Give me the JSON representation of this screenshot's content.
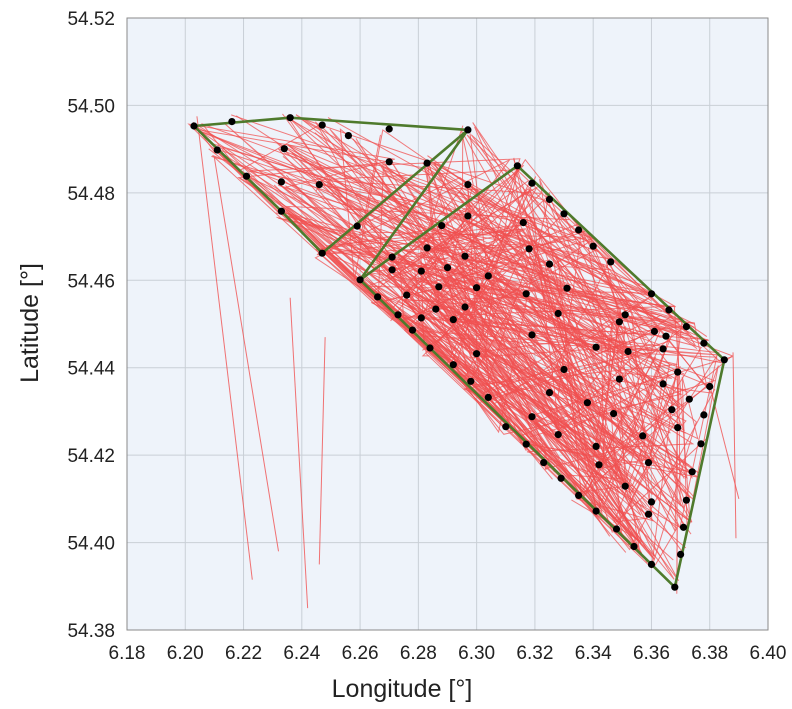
{
  "chart_data": {
    "type": "scatter",
    "title": "",
    "xlabel": "Longitude [°]",
    "ylabel": "Latitude [°]",
    "xlim": [
      6.18,
      6.4
    ],
    "ylim": [
      54.38,
      54.52
    ],
    "x_ticks": [
      "6.18",
      "6.20",
      "6.22",
      "6.24",
      "6.26",
      "6.28",
      "6.30",
      "6.32",
      "6.34",
      "6.36",
      "6.38",
      "6.40"
    ],
    "y_ticks": [
      "54.38",
      "54.40",
      "54.42",
      "54.44",
      "54.46",
      "54.48",
      "54.50",
      "54.52"
    ],
    "grid": true,
    "legend": "none",
    "colors": {
      "plot_background": "#eef3fa",
      "grid": "#c9cfd6",
      "tracks": "#f05050",
      "boundary": "#4e7a2c",
      "points": "#000000"
    },
    "boundary_lines": [
      {
        "x": [
          6.203,
          6.236,
          6.297,
          6.247,
          6.233,
          6.203
        ],
        "y": [
          54.4953,
          54.4972,
          54.4944,
          54.4662,
          54.4758,
          54.4953
        ]
      },
      {
        "x": [
          6.297,
          6.26,
          6.314,
          6.385,
          6.368,
          6.26
        ],
        "y": [
          54.4944,
          54.4601,
          54.4862,
          54.4418,
          54.3898,
          54.4601
        ]
      }
    ],
    "points": [
      [
        6.203,
        54.4953
      ],
      [
        6.216,
        54.4963
      ],
      [
        6.236,
        54.4972
      ],
      [
        6.247,
        54.4955
      ],
      [
        6.256,
        54.4931
      ],
      [
        6.27,
        54.4946
      ],
      [
        6.297,
        54.4944
      ],
      [
        6.211,
        54.4898
      ],
      [
        6.234,
        54.4901
      ],
      [
        6.221,
        54.4838
      ],
      [
        6.233,
        54.4825
      ],
      [
        6.246,
        54.4819
      ],
      [
        6.233,
        54.4758
      ],
      [
        6.247,
        54.4662
      ],
      [
        6.27,
        54.4871
      ],
      [
        6.283,
        54.4868
      ],
      [
        6.259,
        54.4724
      ],
      [
        6.271,
        54.4653
      ],
      [
        6.297,
        54.4819
      ],
      [
        6.314,
        54.4862
      ],
      [
        6.319,
        54.4822
      ],
      [
        6.325,
        54.4785
      ],
      [
        6.33,
        54.4752
      ],
      [
        6.335,
        54.4715
      ],
      [
        6.34,
        54.4678
      ],
      [
        6.346,
        54.4642
      ],
      [
        6.36,
        54.4569
      ],
      [
        6.366,
        54.4532
      ],
      [
        6.372,
        54.4494
      ],
      [
        6.378,
        54.4456
      ],
      [
        6.385,
        54.4418
      ],
      [
        6.38,
        54.4357
      ],
      [
        6.378,
        54.4292
      ],
      [
        6.377,
        54.4226
      ],
      [
        6.374,
        54.4162
      ],
      [
        6.372,
        54.4097
      ],
      [
        6.371,
        54.4035
      ],
      [
        6.37,
        54.3973
      ],
      [
        6.368,
        54.3898
      ],
      [
        6.36,
        54.395
      ],
      [
        6.354,
        54.3991
      ],
      [
        6.348,
        54.4031
      ],
      [
        6.341,
        54.4072
      ],
      [
        6.335,
        54.4108
      ],
      [
        6.329,
        54.4147
      ],
      [
        6.323,
        54.4183
      ],
      [
        6.317,
        54.4225
      ],
      [
        6.31,
        54.4265
      ],
      [
        6.304,
        54.4332
      ],
      [
        6.298,
        54.4369
      ],
      [
        6.292,
        54.4407
      ],
      [
        6.284,
        54.4445
      ],
      [
        6.278,
        54.4486
      ],
      [
        6.273,
        54.4521
      ],
      [
        6.266,
        54.4562
      ],
      [
        6.26,
        54.4601
      ],
      [
        6.283,
        54.4674
      ],
      [
        6.288,
        54.4725
      ],
      [
        6.29,
        54.4629
      ],
      [
        6.297,
        54.4747
      ],
      [
        6.296,
        54.4655
      ],
      [
        6.296,
        54.4539
      ],
      [
        6.3,
        54.4432
      ],
      [
        6.316,
        54.4732
      ],
      [
        6.318,
        54.4672
      ],
      [
        6.325,
        54.4637
      ],
      [
        6.317,
        54.4569
      ],
      [
        6.331,
        54.4582
      ],
      [
        6.328,
        54.4524
      ],
      [
        6.319,
        54.4475
      ],
      [
        6.33,
        54.4396
      ],
      [
        6.325,
        54.4343
      ],
      [
        6.319,
        54.4288
      ],
      [
        6.328,
        54.4247
      ],
      [
        6.341,
        54.4447
      ],
      [
        6.338,
        54.432
      ],
      [
        6.349,
        54.4505
      ],
      [
        6.352,
        54.4437
      ],
      [
        6.349,
        54.4374
      ],
      [
        6.347,
        54.4295
      ],
      [
        6.341,
        54.422
      ],
      [
        6.342,
        54.4178
      ],
      [
        6.351,
        54.4129
      ],
      [
        6.357,
        54.4244
      ],
      [
        6.359,
        54.4183
      ],
      [
        6.36,
        54.4093
      ],
      [
        6.359,
        54.4065
      ],
      [
        6.364,
        54.4443
      ],
      [
        6.364,
        54.4363
      ],
      [
        6.367,
        54.4304
      ],
      [
        6.369,
        54.4263
      ],
      [
        6.304,
        54.461
      ],
      [
        6.281,
        54.4621
      ],
      [
        6.287,
        54.4585
      ],
      [
        6.3,
        54.4583
      ],
      [
        6.292,
        54.451
      ],
      [
        6.286,
        54.4534
      ],
      [
        6.281,
        54.4514
      ],
      [
        6.271,
        54.4624
      ],
      [
        6.276,
        54.4566
      ],
      [
        6.365,
        54.4472
      ],
      [
        6.351,
        54.4521
      ],
      [
        6.361,
        54.4483
      ],
      [
        6.369,
        54.439
      ],
      [
        6.373,
        54.4328
      ]
    ],
    "tracks_note": "dense mesh of vessel tracks over the same area plus a few long straight tracks extending south to about 54.385"
  }
}
